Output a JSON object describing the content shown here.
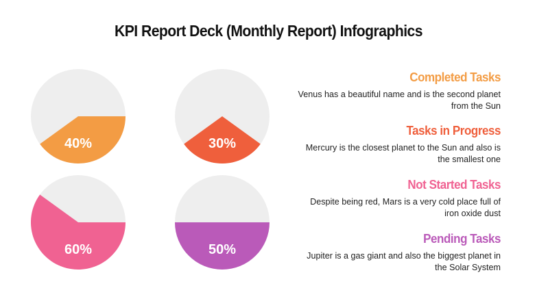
{
  "title": "KPI Report Deck (Monthly Report) Infographics",
  "chart_data": {
    "type": "pie",
    "track_color": "#eeeeee",
    "series": [
      {
        "name": "Completed Tasks",
        "value": 40,
        "label": "40%",
        "color": "#f39c44",
        "description": "Venus has a beautiful name and is the second planet from the Sun"
      },
      {
        "name": "Tasks in Progress",
        "value": 30,
        "label": "30%",
        "color": "#ef5f3c",
        "description": "Mercury is the closest planet to the Sun and also is the smallest one"
      },
      {
        "name": "Not Started Tasks",
        "value": 60,
        "label": "60%",
        "color": "#f06292",
        "description": "Despite being red, Mars is a very cold place full of iron oxide dust"
      },
      {
        "name": "Pending Tasks",
        "value": 50,
        "label": "50%",
        "color": "#ba5ab9",
        "description": "Jupiter is a gas giant and also the biggest planet in the Solar System"
      }
    ]
  }
}
